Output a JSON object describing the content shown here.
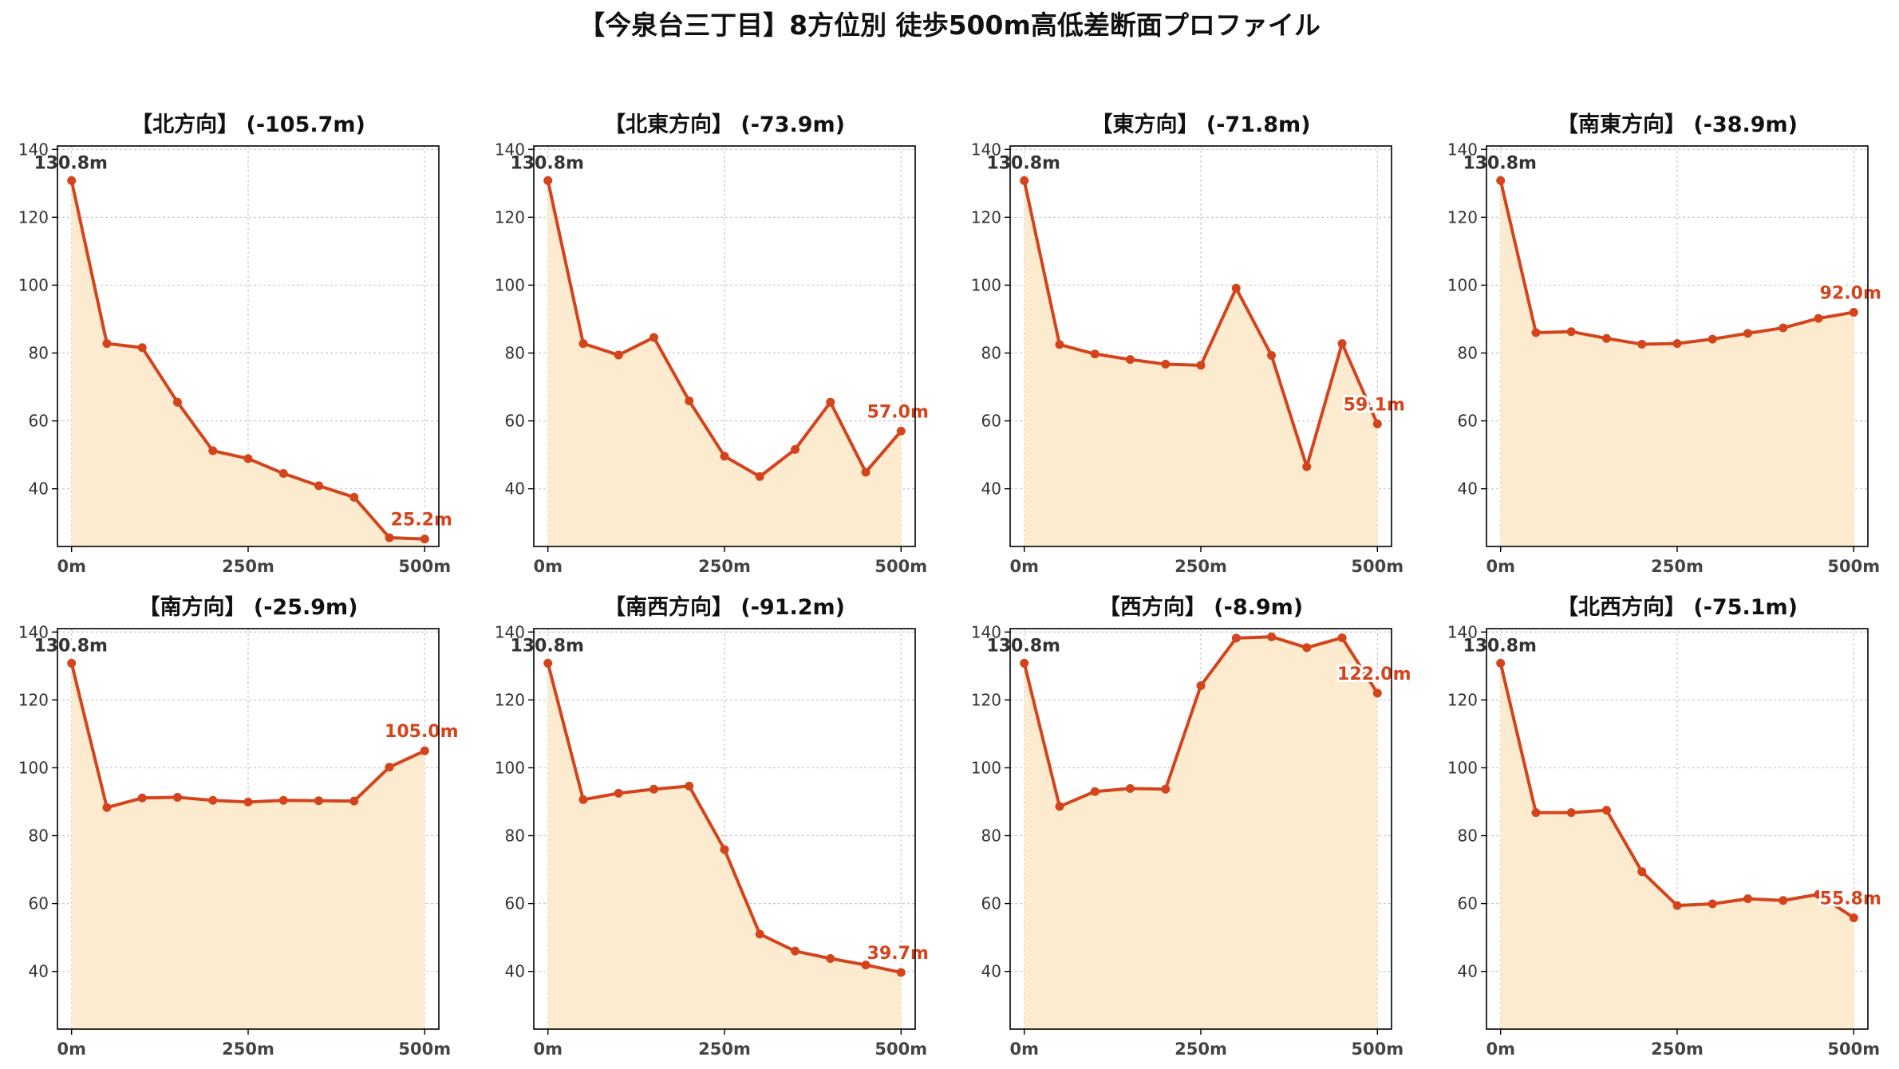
{
  "title": "【今泉台三丁目】8方位別 徒歩500m高低差断面プロファイル",
  "colors": {
    "line": "#d4441c",
    "fill": "#fdebd0",
    "start_label": "#333333",
    "end_label": "#d4441c"
  },
  "chart_data": [
    {
      "type": "area",
      "title": "【北方向】 (-105.7m)",
      "x": [
        0,
        50,
        100,
        150,
        200,
        250,
        300,
        350,
        400,
        450,
        500
      ],
      "y": [
        130.8,
        82.8,
        81.6,
        65.5,
        51.2,
        48.9,
        44.5,
        40.9,
        37.5,
        25.6,
        25.2
      ],
      "start_label": "130.8m",
      "end_label": "25.2m",
      "xticks": [
        "0m",
        "250m",
        "500m"
      ],
      "yticks": [
        "40",
        "60",
        "80",
        "100",
        "120",
        "140"
      ],
      "xlim": [
        -20,
        520
      ],
      "ylim": [
        23,
        141
      ],
      "grid": true
    },
    {
      "type": "area",
      "title": "【北東方向】 (-73.9m)",
      "x": [
        0,
        50,
        100,
        150,
        200,
        250,
        300,
        350,
        400,
        450,
        500
      ],
      "y": [
        130.8,
        82.8,
        79.4,
        84.6,
        65.9,
        49.6,
        43.6,
        51.6,
        65.5,
        44.9,
        57.0
      ],
      "start_label": "130.8m",
      "end_label": "57.0m",
      "xticks": [
        "0m",
        "250m",
        "500m"
      ],
      "yticks": [
        "40",
        "60",
        "80",
        "100",
        "120",
        "140"
      ],
      "xlim": [
        -20,
        520
      ],
      "ylim": [
        23,
        141
      ],
      "grid": true
    },
    {
      "type": "area",
      "title": "【東方向】 (-71.8m)",
      "x": [
        0,
        50,
        100,
        150,
        200,
        250,
        300,
        350,
        400,
        450,
        500
      ],
      "y": [
        130.8,
        82.5,
        79.7,
        78.1,
        76.7,
        76.4,
        99.1,
        79.3,
        46.5,
        82.8,
        59.1
      ],
      "start_label": "130.8m",
      "end_label": "59.1m",
      "xticks": [
        "0m",
        "250m",
        "500m"
      ],
      "yticks": [
        "40",
        "60",
        "80",
        "100",
        "120",
        "140"
      ],
      "xlim": [
        -20,
        520
      ],
      "ylim": [
        23,
        141
      ],
      "grid": true
    },
    {
      "type": "area",
      "title": "【南東方向】 (-38.9m)",
      "x": [
        0,
        50,
        100,
        150,
        200,
        250,
        300,
        350,
        400,
        450,
        500
      ],
      "y": [
        130.8,
        86.0,
        86.3,
        84.3,
        82.6,
        82.8,
        84.1,
        85.8,
        87.4,
        90.2,
        92.0
      ],
      "start_label": "130.8m",
      "end_label": "92.0m",
      "xticks": [
        "0m",
        "250m",
        "500m"
      ],
      "yticks": [
        "40",
        "60",
        "80",
        "100",
        "120",
        "140"
      ],
      "xlim": [
        -20,
        520
      ],
      "ylim": [
        23,
        141
      ],
      "grid": true
    },
    {
      "type": "area",
      "title": "【南方向】 (-25.9m)",
      "x": [
        0,
        50,
        100,
        150,
        200,
        250,
        300,
        350,
        400,
        450,
        500
      ],
      "y": [
        130.8,
        88.3,
        91.1,
        91.3,
        90.4,
        89.9,
        90.4,
        90.3,
        90.2,
        100.2,
        105.0
      ],
      "start_label": "130.8m",
      "end_label": "105.0m",
      "xticks": [
        "0m",
        "250m",
        "500m"
      ],
      "yticks": [
        "40",
        "60",
        "80",
        "100",
        "120",
        "140"
      ],
      "xlim": [
        -20,
        520
      ],
      "ylim": [
        23,
        141
      ],
      "grid": true
    },
    {
      "type": "area",
      "title": "【南西方向】 (-91.2m)",
      "x": [
        0,
        50,
        100,
        150,
        200,
        250,
        300,
        350,
        400,
        450,
        500
      ],
      "y": [
        130.8,
        90.6,
        92.5,
        93.7,
        94.6,
        75.9,
        51.0,
        46.0,
        43.8,
        41.9,
        39.7
      ],
      "start_label": "130.8m",
      "end_label": "39.7m",
      "xticks": [
        "0m",
        "250m",
        "500m"
      ],
      "yticks": [
        "40",
        "60",
        "80",
        "100",
        "120",
        "140"
      ],
      "xlim": [
        -20,
        520
      ],
      "ylim": [
        23,
        141
      ],
      "grid": true
    },
    {
      "type": "area",
      "title": "【西方向】 (-8.9m)",
      "x": [
        0,
        50,
        100,
        150,
        200,
        250,
        300,
        350,
        400,
        450,
        500
      ],
      "y": [
        130.8,
        88.6,
        93.0,
        93.9,
        93.7,
        124.2,
        138.2,
        138.6,
        135.4,
        138.3,
        122.0
      ],
      "start_label": "130.8m",
      "end_label": "122.0m",
      "xticks": [
        "0m",
        "250m",
        "500m"
      ],
      "yticks": [
        "40",
        "60",
        "80",
        "100",
        "120",
        "140"
      ],
      "xlim": [
        -20,
        520
      ],
      "ylim": [
        23,
        141
      ],
      "grid": true
    },
    {
      "type": "area",
      "title": "【北西方向】 (-75.1m)",
      "x": [
        0,
        50,
        100,
        150,
        200,
        250,
        300,
        350,
        400,
        450,
        500
      ],
      "y": [
        130.8,
        86.8,
        86.8,
        87.5,
        69.4,
        59.4,
        59.9,
        61.4,
        60.9,
        62.7,
        55.8
      ],
      "start_label": "130.8m",
      "end_label": "55.8m",
      "xticks": [
        "0m",
        "250m",
        "500m"
      ],
      "yticks": [
        "40",
        "60",
        "80",
        "100",
        "120",
        "140"
      ],
      "xlim": [
        -20,
        520
      ],
      "ylim": [
        23,
        141
      ],
      "grid": true
    }
  ]
}
